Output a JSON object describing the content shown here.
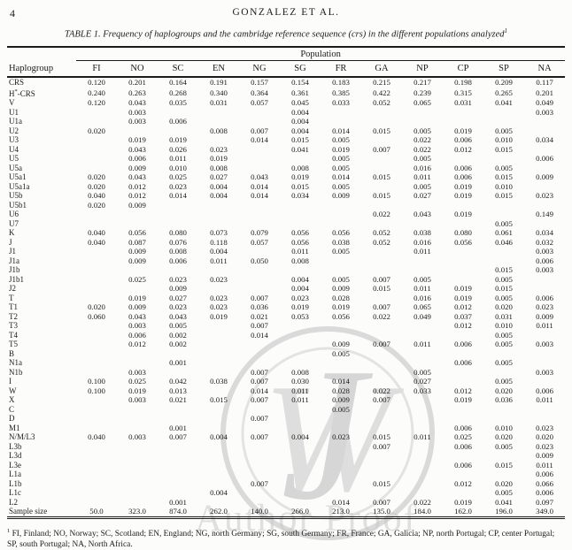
{
  "page": {
    "number": "4",
    "running_head": "GONZALEZ ET AL."
  },
  "caption": {
    "label": "TABLE 1.",
    "text": "Frequency of haplogroups and the cambridge reference sequence (crs) in the different populations analyzed",
    "footnote_marker": "1"
  },
  "table": {
    "group_header": "Population",
    "row_header": "Haplogroup",
    "columns": [
      "FI",
      "NO",
      "SC",
      "EN",
      "NG",
      "SG",
      "FR",
      "GA",
      "NP",
      "CP",
      "SP",
      "NA"
    ],
    "rows": [
      {
        "label": "CRS",
        "values": [
          "0.120",
          "0.201",
          "0.164",
          "0.191",
          "0.157",
          "0.154",
          "0.183",
          "0.215",
          "0.217",
          "0.198",
          "0.209",
          "0.117"
        ]
      },
      {
        "label": "H*-CRS",
        "values": [
          "0.240",
          "0.263",
          "0.268",
          "0.340",
          "0.364",
          "0.361",
          "0.385",
          "0.422",
          "0.239",
          "0.315",
          "0.265",
          "0.201"
        ]
      },
      {
        "label": "V",
        "values": [
          "0.120",
          "0.043",
          "0.035",
          "0.031",
          "0.057",
          "0.045",
          "0.033",
          "0.052",
          "0.065",
          "0.031",
          "0.041",
          "0.049"
        ]
      },
      {
        "label": "U1",
        "values": [
          "",
          "0.003",
          "",
          "",
          "",
          "0.004",
          "",
          "",
          "",
          "",
          "",
          "0.003"
        ]
      },
      {
        "label": "U1a",
        "values": [
          "",
          "0.003",
          "0.006",
          "",
          "",
          "0.004",
          "",
          "",
          "",
          "",
          "",
          ""
        ]
      },
      {
        "label": "U2",
        "values": [
          "0.020",
          "",
          "",
          "0.008",
          "0.007",
          "0.004",
          "0.014",
          "0.015",
          "0.005",
          "0.019",
          "0.005",
          ""
        ]
      },
      {
        "label": "U3",
        "values": [
          "",
          "0.019",
          "0.019",
          "",
          "0.014",
          "0.015",
          "0.005",
          "",
          "0.022",
          "0.006",
          "0.010",
          "0.034"
        ]
      },
      {
        "label": "U4",
        "values": [
          "",
          "0.043",
          "0.026",
          "0.023",
          "",
          "0.041",
          "0.019",
          "0.007",
          "0.022",
          "0.012",
          "0.015",
          ""
        ]
      },
      {
        "label": "U5",
        "values": [
          "",
          "0.006",
          "0.011",
          "0.019",
          "",
          "",
          "0.005",
          "",
          "0.005",
          "",
          "",
          "0.006"
        ]
      },
      {
        "label": "U5a",
        "values": [
          "",
          "0.009",
          "0.010",
          "0.008",
          "",
          "0.008",
          "0.005",
          "",
          "0.016",
          "0.006",
          "0.005",
          ""
        ]
      },
      {
        "label": "U5a1",
        "values": [
          "0.020",
          "0.043",
          "0.025",
          "0.027",
          "0.043",
          "0.019",
          "0.014",
          "0.015",
          "0.011",
          "0.006",
          "0.015",
          "0.009"
        ]
      },
      {
        "label": "U5a1a",
        "values": [
          "0.020",
          "0.012",
          "0.023",
          "0.004",
          "0.014",
          "0.015",
          "0.005",
          "",
          "0.005",
          "0.019",
          "0.010",
          ""
        ]
      },
      {
        "label": "U5b",
        "values": [
          "0.040",
          "0.012",
          "0.014",
          "0.004",
          "0.014",
          "0.034",
          "0.009",
          "0.015",
          "0.027",
          "0.019",
          "0.015",
          "0.023"
        ]
      },
      {
        "label": "U5b1",
        "values": [
          "0.020",
          "0.009",
          "",
          "",
          "",
          "",
          "",
          "",
          "",
          "",
          "",
          ""
        ]
      },
      {
        "label": "U6",
        "values": [
          "",
          "",
          "",
          "",
          "",
          "",
          "",
          "0.022",
          "0.043",
          "0.019",
          "",
          "0.149"
        ]
      },
      {
        "label": "U7",
        "values": [
          "",
          "",
          "",
          "",
          "",
          "",
          "",
          "",
          "",
          "",
          "0.005",
          ""
        ]
      },
      {
        "label": "K",
        "values": [
          "0.040",
          "0.056",
          "0.080",
          "0.073",
          "0.079",
          "0.056",
          "0.056",
          "0.052",
          "0.038",
          "0.080",
          "0.061",
          "0.034"
        ]
      },
      {
        "label": "J",
        "values": [
          "0.040",
          "0.087",
          "0.076",
          "0.118",
          "0.057",
          "0.056",
          "0.038",
          "0.052",
          "0.016",
          "0.056",
          "0.046",
          "0.032"
        ]
      },
      {
        "label": "J1",
        "values": [
          "",
          "0.009",
          "0.008",
          "0.004",
          "",
          "0.011",
          "0.005",
          "",
          "0.011",
          "",
          "",
          "0.003"
        ]
      },
      {
        "label": "J1a",
        "values": [
          "",
          "0.009",
          "0.006",
          "0.011",
          "0.050",
          "0.008",
          "",
          "",
          "",
          "",
          "",
          "0.006"
        ]
      },
      {
        "label": "J1b",
        "values": [
          "",
          "",
          "",
          "",
          "",
          "",
          "",
          "",
          "",
          "",
          "0.015",
          "0.003"
        ]
      },
      {
        "label": "J1b1",
        "values": [
          "",
          "0.025",
          "0.023",
          "0.023",
          "",
          "0.004",
          "0.005",
          "0.007",
          "0.005",
          "",
          "0.005",
          ""
        ]
      },
      {
        "label": "J2",
        "values": [
          "",
          "",
          "0.009",
          "",
          "",
          "0.004",
          "0.009",
          "0.015",
          "0.011",
          "0.019",
          "0.015",
          ""
        ]
      },
      {
        "label": "T",
        "values": [
          "",
          "0.019",
          "0.027",
          "0.023",
          "0.007",
          "0.023",
          "0.028",
          "",
          "0.016",
          "0.019",
          "0.005",
          "0.006"
        ]
      },
      {
        "label": "T1",
        "values": [
          "0.020",
          "0.009",
          "0.023",
          "0.023",
          "0.036",
          "0.019",
          "0.019",
          "0.007",
          "0.065",
          "0.012",
          "0.020",
          "0.023"
        ]
      },
      {
        "label": "T2",
        "values": [
          "0.060",
          "0.043",
          "0.043",
          "0.019",
          "0.021",
          "0.053",
          "0.056",
          "0.022",
          "0.049",
          "0.037",
          "0.031",
          "0.009"
        ]
      },
      {
        "label": "T3",
        "values": [
          "",
          "0.003",
          "0.005",
          "",
          "0.007",
          "",
          "",
          "",
          "",
          "0.012",
          "0.010",
          "0.011"
        ]
      },
      {
        "label": "T4",
        "values": [
          "",
          "0.006",
          "0.002",
          "",
          "0.014",
          "",
          "",
          "",
          "",
          "",
          "0.005",
          ""
        ]
      },
      {
        "label": "T5",
        "values": [
          "",
          "0.012",
          "0.002",
          "",
          "",
          "",
          "0.009",
          "0.007",
          "0.011",
          "0.006",
          "0.005",
          "0.003"
        ]
      },
      {
        "label": "B",
        "values": [
          "",
          "",
          "",
          "",
          "",
          "",
          "0.005",
          "",
          "",
          "",
          "",
          ""
        ]
      },
      {
        "label": "N1a",
        "values": [
          "",
          "",
          "0.001",
          "",
          "",
          "",
          "",
          "",
          "",
          "0.006",
          "0.005",
          ""
        ]
      },
      {
        "label": "N1b",
        "values": [
          "",
          "0.003",
          "",
          "",
          "0.007",
          "0.008",
          "",
          "",
          "0.005",
          "",
          "",
          "0.003"
        ]
      },
      {
        "label": "I",
        "values": [
          "0.100",
          "0.025",
          "0.042",
          "0.038",
          "0.007",
          "0.030",
          "0.014",
          "",
          "0.027",
          "",
          "0.005",
          ""
        ]
      },
      {
        "label": "W",
        "values": [
          "0.100",
          "0.019",
          "0.013",
          "",
          "0.014",
          "0.011",
          "0.028",
          "0.022",
          "0.033",
          "0.012",
          "0.020",
          "0.006"
        ]
      },
      {
        "label": "X",
        "values": [
          "",
          "0.003",
          "0.021",
          "0.015",
          "0.007",
          "0.011",
          "0.009",
          "0.007",
          "",
          "0.019",
          "0.036",
          "0.011"
        ]
      },
      {
        "label": "C",
        "values": [
          "",
          "",
          "",
          "",
          "",
          "",
          "0.005",
          "",
          "",
          "",
          "",
          ""
        ]
      },
      {
        "label": "D",
        "values": [
          "",
          "",
          "",
          "",
          "0.007",
          "",
          "",
          "",
          "",
          "",
          "",
          ""
        ]
      },
      {
        "label": "M1",
        "values": [
          "",
          "",
          "0.001",
          "",
          "",
          "",
          "",
          "",
          "",
          "0.006",
          "0.010",
          "0.023"
        ]
      },
      {
        "label": "N/M/L3",
        "values": [
          "0.040",
          "0.003",
          "0.007",
          "0.004",
          "0.007",
          "0.004",
          "0.023",
          "0.015",
          "0.011",
          "0.025",
          "0.020",
          "0.020"
        ]
      },
      {
        "label": "L3b",
        "values": [
          "",
          "",
          "",
          "",
          "",
          "",
          "",
          "0.007",
          "",
          "0.006",
          "0.005",
          "0.023"
        ]
      },
      {
        "label": "L3d",
        "values": [
          "",
          "",
          "",
          "",
          "",
          "",
          "",
          "",
          "",
          "",
          "",
          "0.009"
        ]
      },
      {
        "label": "L3e",
        "values": [
          "",
          "",
          "",
          "",
          "",
          "",
          "",
          "",
          "",
          "0.006",
          "0.015",
          "0.011"
        ]
      },
      {
        "label": "L1a",
        "values": [
          "",
          "",
          "",
          "",
          "",
          "",
          "",
          "",
          "",
          "",
          "",
          "0.006"
        ]
      },
      {
        "label": "L1b",
        "values": [
          "",
          "",
          "",
          "",
          "0.007",
          "",
          "",
          "0.015",
          "",
          "0.012",
          "0.020",
          "0.066"
        ]
      },
      {
        "label": "L1c",
        "values": [
          "",
          "",
          "",
          "0.004",
          "",
          "",
          "",
          "",
          "",
          "",
          "0.005",
          "0.006"
        ]
      },
      {
        "label": "L2",
        "values": [
          "",
          "",
          "0.001",
          "",
          "",
          "",
          "0.014",
          "0.007",
          "0.022",
          "0.019",
          "0.041",
          "0.097"
        ]
      }
    ],
    "sample_size_label": "Sample size",
    "sample_sizes": [
      "50.0",
      "323.0",
      "874.0",
      "262.0",
      "140.0",
      "266.0",
      "213.0",
      "135.0",
      "184.0",
      "162.0",
      "196.0",
      "349.0"
    ]
  },
  "footnote": {
    "marker": "1",
    "text": " FI, Finland; NO, Norway; SC, Scotland; EN, England; NG, north Germany; SG, south Germany; FR, France; GA, Galicia; NP, north Portugal; CP, center Portugal; SP, south Portugal; NA, North Africa."
  },
  "watermark": {
    "monogram": "JW",
    "text": "Author Proof",
    "color": "#d9d9d9"
  }
}
